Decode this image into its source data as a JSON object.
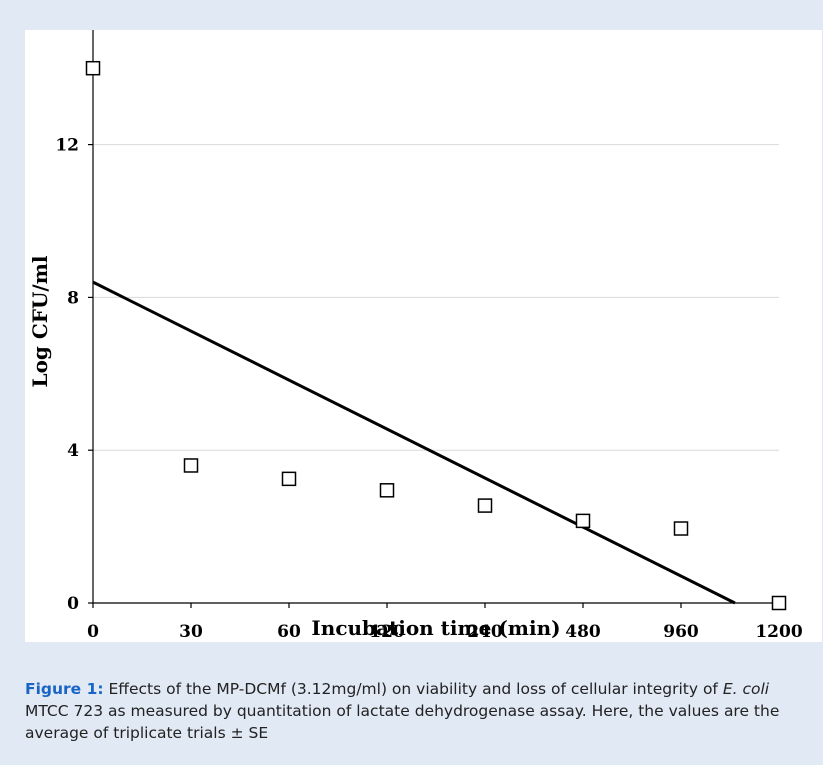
{
  "chart_data": {
    "type": "scatter",
    "title": "",
    "xlabel": "Incubation time (min)",
    "ylabel": "Log CFU/ml",
    "categories": [
      "0",
      "30",
      "60",
      "120",
      "240",
      "480",
      "960",
      "1200"
    ],
    "y_ticks": [
      0,
      4,
      8,
      12
    ],
    "ylim": [
      0,
      15
    ],
    "grid": "horizontal",
    "legend": "none",
    "marker": "open-square",
    "series": [
      {
        "values": [
          14.0,
          3.6,
          3.25,
          2.95,
          2.55,
          2.15,
          1.95,
          0.0
        ]
      }
    ],
    "trendline": {
      "type": "linear",
      "y_at_first": 8.4,
      "y_zero_at_index": 6.55
    }
  },
  "caption": {
    "label": "Figure 1:",
    "part1": " Effects of the MP-DCMf (3.12mg/ml) on viability and loss of cellular integrity of ",
    "organism": "E. coli",
    "part2": " MTCC 723 as measured by quantitation of lactate dehydrogenase assay. Here, the values are the average of triplicate trials ± SE"
  },
  "colors": {
    "background": "#e1e9f5",
    "caption_label": "#1a64c8",
    "grid": "#d9d9d9"
  }
}
